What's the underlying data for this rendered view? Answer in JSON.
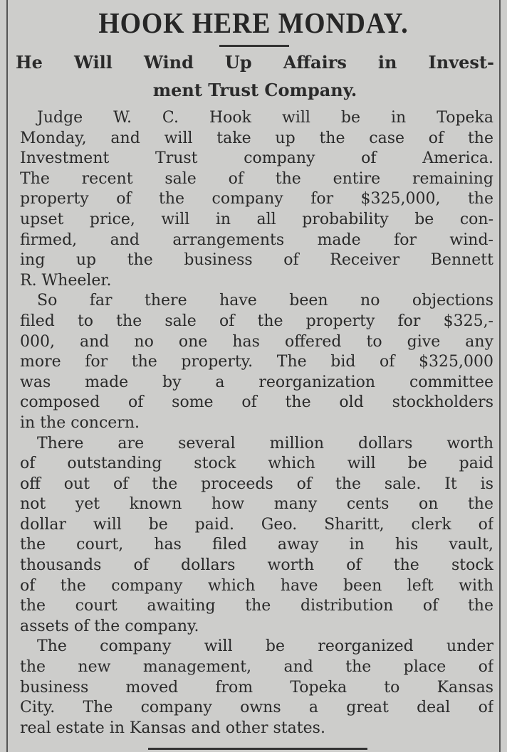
{
  "headline": "HOOK HERE MONDAY.",
  "subheadline": [
    "He Will Wind Up Affairs in Invest-",
    "ment Trust Company."
  ],
  "paragraphs": [
    [
      "Judge W. C. Hook will be in Topeka",
      "Monday, and will take up the case of the",
      "Investment Trust company of America.",
      "The recent sale of the entire remaining",
      "property of the company for $325,000, the",
      "upset price, will in all probability be con-",
      "firmed, and arrangements made for wind-",
      "ing up the business of Receiver Bennett",
      "R. Wheeler."
    ],
    [
      "So far there have been no objections",
      "filed to the sale of the property for $325,-",
      "000, and no one has offered to give any",
      "more for the property. The bid of $325,000",
      "was made by a reorganization committee",
      "composed of some of the old stockholders",
      "in the concern."
    ],
    [
      "There are several million dollars worth",
      "of outstanding stock which will be paid",
      "off out of the proceeds of the sale. It is",
      "not yet known how many cents on the",
      "dollar will be paid. Geo. Sharitt, clerk of",
      "the court, has filed away in his vault,",
      "thousands of dollars worth of the stock",
      "of the company which have been left with",
      "the court awaiting the distribution of the",
      "assets of the company."
    ],
    [
      "The company will be reorganized under",
      "the new management, and the place of",
      "business moved from Topeka to Kansas",
      "City. The company owns a great deal of",
      "real estate in Kansas and other states."
    ]
  ]
}
